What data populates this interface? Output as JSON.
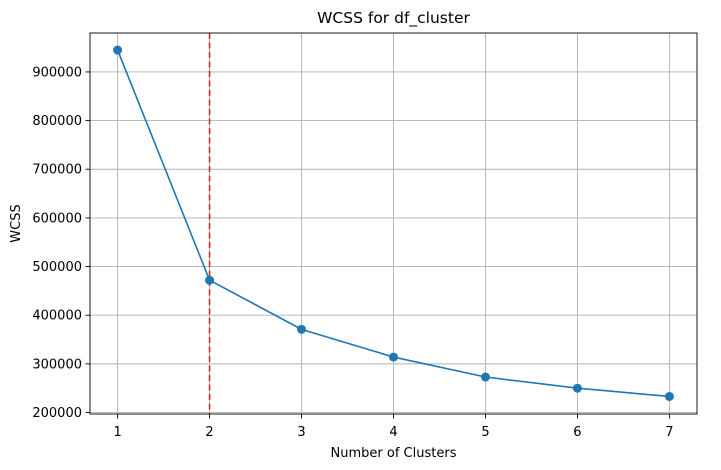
{
  "chart_data": {
    "type": "line",
    "title": "WCSS for df_cluster",
    "xlabel": "Number of Clusters",
    "ylabel": "WCSS",
    "x": [
      1,
      2,
      3,
      4,
      5,
      6,
      7
    ],
    "series": [
      {
        "values": [
          945000,
          472000,
          371000,
          314000,
          273000,
          250000,
          233000
        ],
        "color": "#1f77b4",
        "marker": "circle"
      }
    ],
    "xticks": [
      1,
      2,
      3,
      4,
      5,
      6,
      7
    ],
    "yticks": [
      200000,
      300000,
      400000,
      500000,
      600000,
      700000,
      800000,
      900000
    ],
    "xlim": [
      0.7,
      7.3
    ],
    "ylim": [
      197000,
      980000
    ],
    "grid": true,
    "reference_line": {
      "orientation": "vertical",
      "x": 2,
      "color": "#d62728",
      "style": "dashed"
    }
  }
}
